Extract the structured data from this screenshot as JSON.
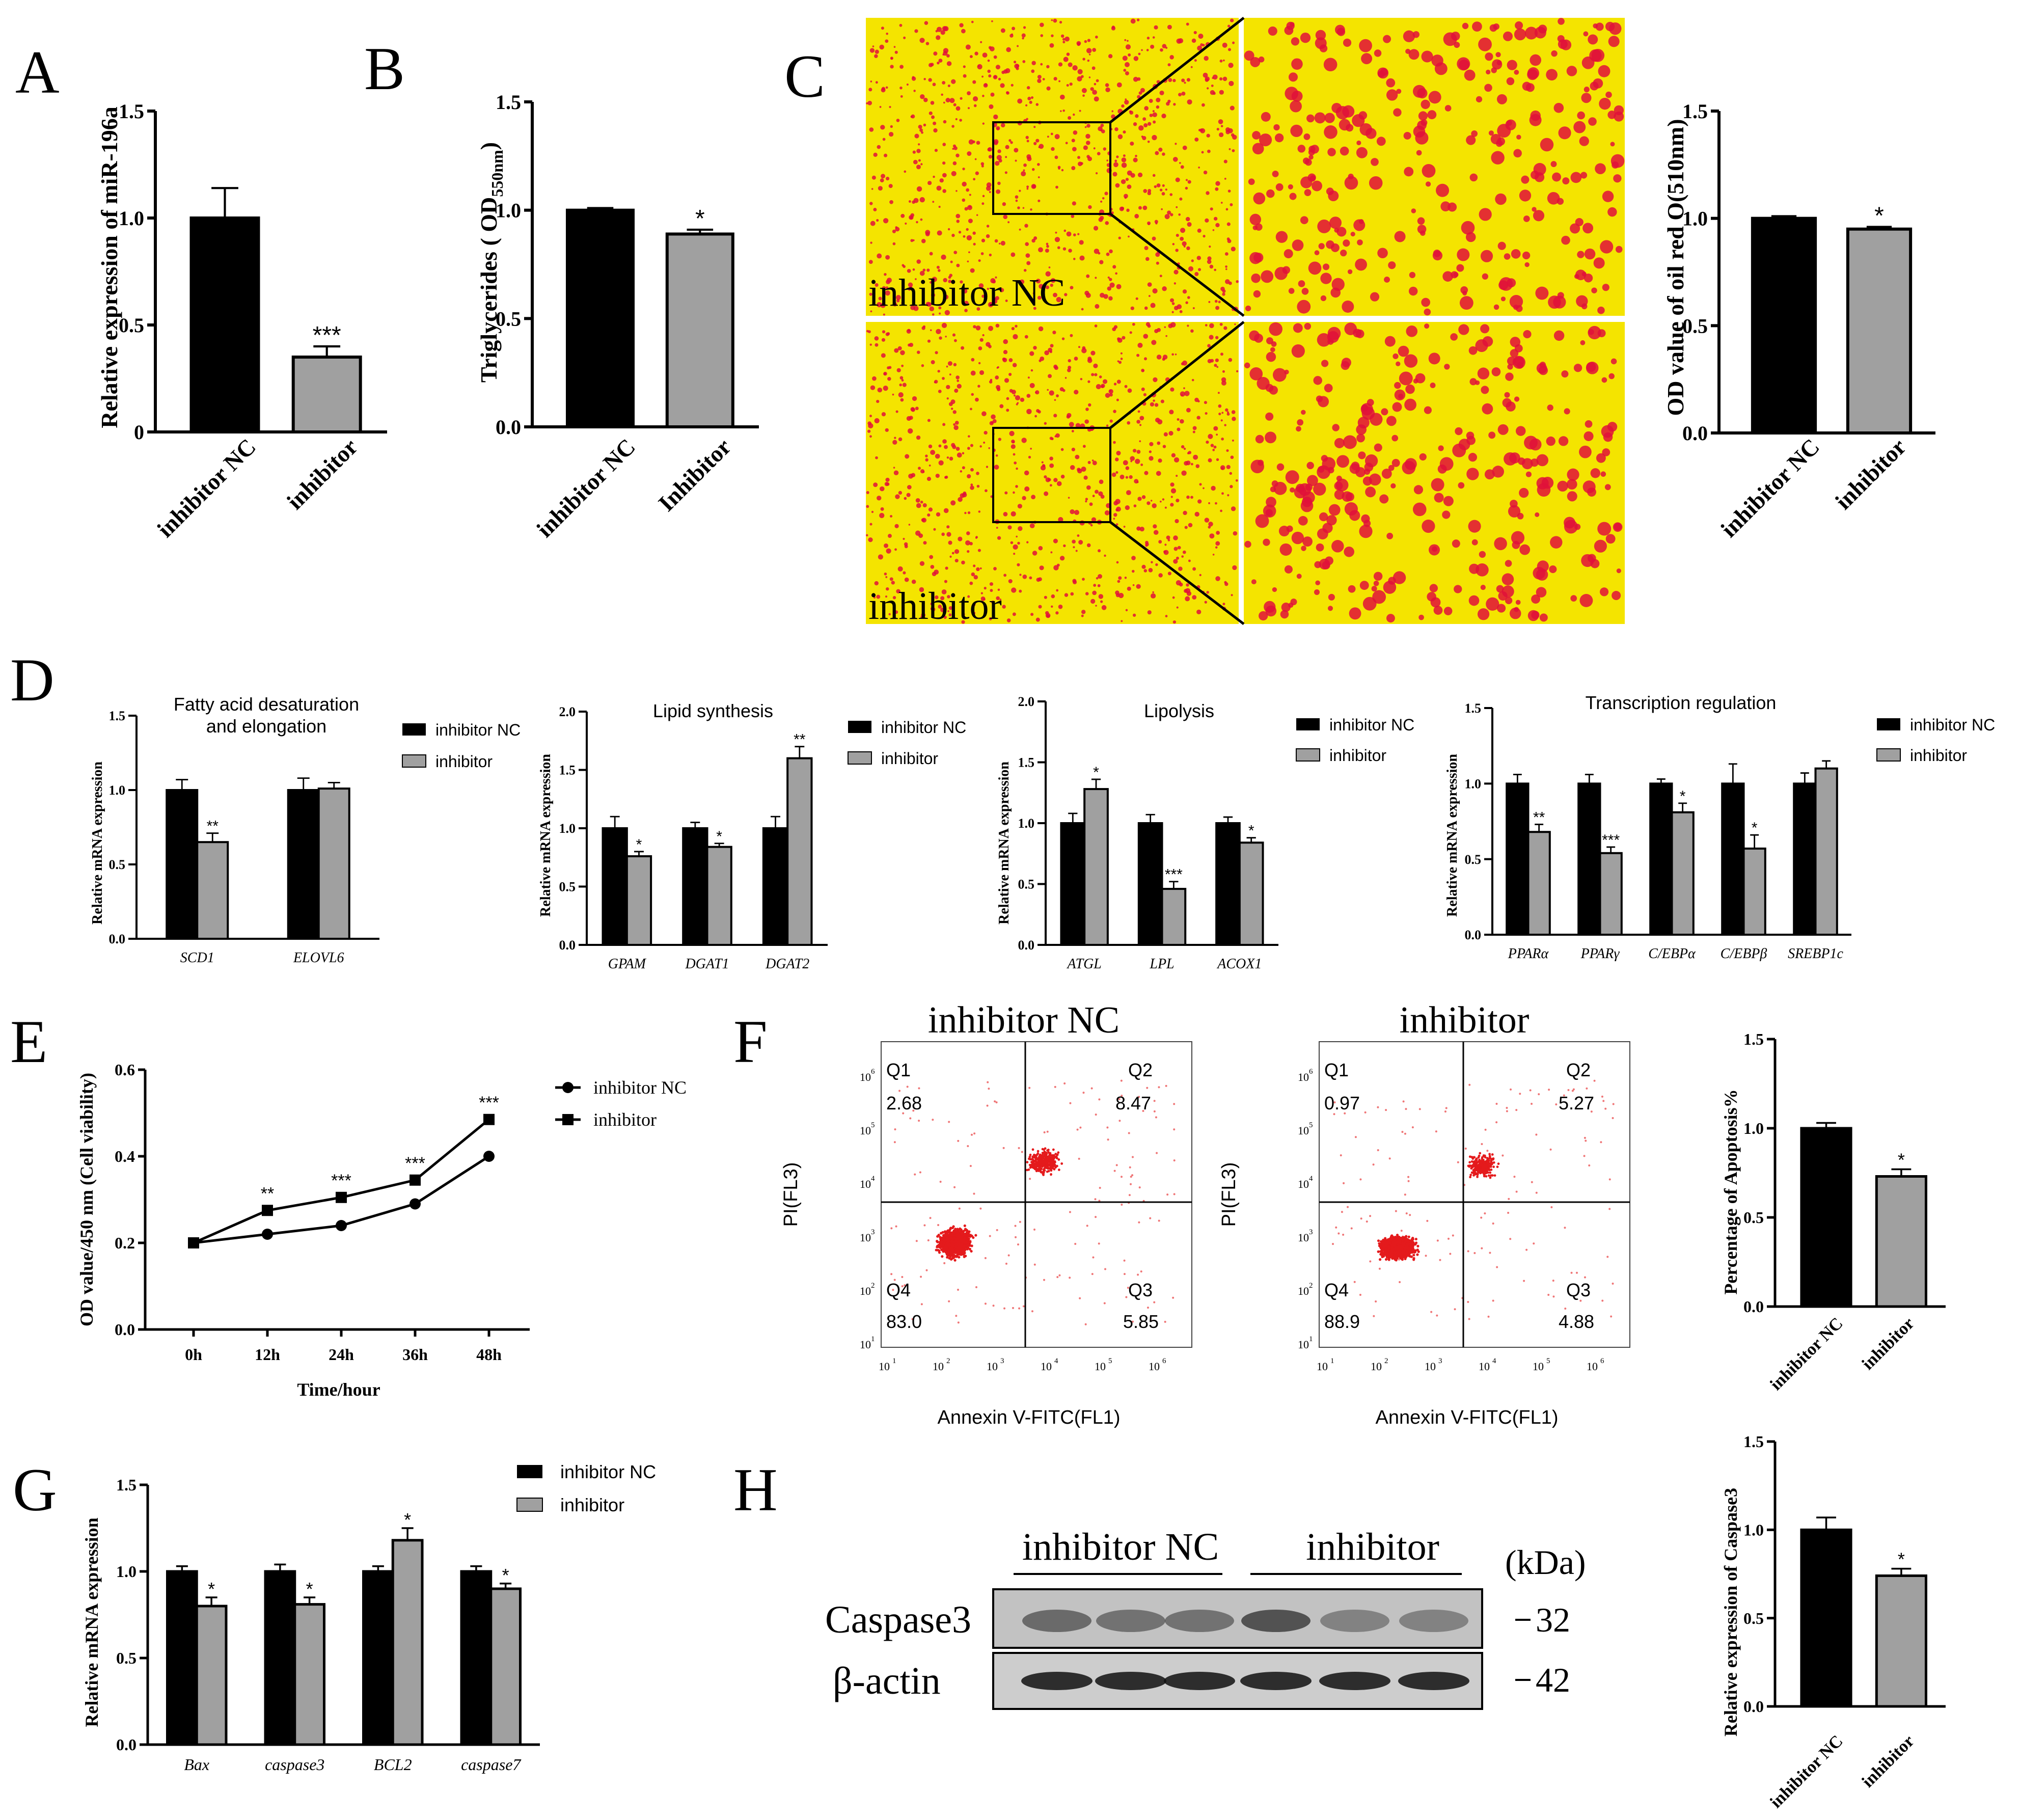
{
  "panel_letters": [
    "A",
    "B",
    "C",
    "D",
    "E",
    "F",
    "G",
    "H"
  ],
  "colors": {
    "nc": "#000000",
    "inh": "#a0a0a0",
    "stain_bg": "#f4e400",
    "droplet": "#e0103a",
    "dot": "#e41a1c"
  },
  "chart_data": [
    {
      "id": "A",
      "type": "bar",
      "ylabel": "Relative expression of miR-196a",
      "categories": [
        "inhibitor NC",
        "inhibitor"
      ],
      "values": [
        1.0,
        0.35
      ],
      "errors": [
        0.14,
        0.05
      ],
      "sig": [
        "",
        "***"
      ],
      "ylim": [
        0,
        1.5
      ],
      "ticks": [
        "0",
        "0.5",
        "1.0",
        "1.5"
      ]
    },
    {
      "id": "B",
      "type": "bar",
      "ylabel_main": "Triglycerides ( OD",
      "ylabel_sub": "550nm",
      "ylabel_end": ")",
      "categories": [
        "inhibitor NC",
        "Inhibitor"
      ],
      "values": [
        1.0,
        0.89
      ],
      "errors": [
        0.01,
        0.02
      ],
      "sig": [
        "",
        "*"
      ],
      "ylim": [
        0,
        1.5
      ],
      "ticks": [
        "0.0",
        "0.5",
        "1.0",
        "1.5"
      ]
    },
    {
      "id": "C",
      "type": "bar",
      "ylabel": "OD value of oil red O(510nm)",
      "categories": [
        "inhibitor NC",
        "inhibitor"
      ],
      "values": [
        1.0,
        0.95
      ],
      "errors": [
        0.01,
        0.01
      ],
      "sig": [
        "",
        "*"
      ],
      "ylim": [
        0,
        1.5
      ],
      "ticks": [
        "0.0",
        "0.5",
        "1.0",
        "1.5"
      ],
      "image_labels": [
        "inhibitor NC",
        "inhibitor"
      ]
    },
    {
      "id": "D1",
      "type": "bar",
      "title": "Fatty acid desaturation and elongation",
      "title_lines": [
        "Fatty acid desaturation",
        "and elongation"
      ],
      "ylabel": "Relative mRNA expression",
      "categories": [
        "SCD1",
        "ELOVL6"
      ],
      "series": [
        {
          "name": "inhibitor NC",
          "values": [
            1.0,
            1.0
          ],
          "errors": [
            0.07,
            0.08
          ]
        },
        {
          "name": "inhibitor",
          "values": [
            0.65,
            1.01
          ],
          "errors": [
            0.06,
            0.04
          ]
        }
      ],
      "sig": [
        "**",
        ""
      ],
      "ylim": [
        0,
        1.5
      ],
      "ticks": [
        "0.0",
        "0.5",
        "1.0",
        "1.5"
      ]
    },
    {
      "id": "D2",
      "type": "bar",
      "title": "Lipid synthesis",
      "ylabel": "Relative mRNA expression",
      "categories": [
        "GPAM",
        "DGAT1",
        "DGAT2"
      ],
      "series": [
        {
          "name": "inhibitor NC",
          "values": [
            1.0,
            1.0,
            1.0
          ],
          "errors": [
            0.1,
            0.05,
            0.1
          ]
        },
        {
          "name": "inhibitor",
          "values": [
            0.76,
            0.84,
            1.6
          ],
          "errors": [
            0.04,
            0.03,
            0.1
          ]
        }
      ],
      "sig": [
        "*",
        "*",
        "**"
      ],
      "ylim": [
        0,
        2.0
      ],
      "ticks": [
        "0.0",
        "0.5",
        "1.0",
        "1.5",
        "2.0"
      ]
    },
    {
      "id": "D3",
      "type": "bar",
      "title": "Lipolysis",
      "ylabel": "Relative mRNA expression",
      "categories": [
        "ATGL",
        "LPL",
        "ACOX1"
      ],
      "series": [
        {
          "name": "inhibitor NC",
          "values": [
            1.0,
            1.0,
            1.0
          ],
          "errors": [
            0.08,
            0.07,
            0.05
          ]
        },
        {
          "name": "inhibitor",
          "values": [
            1.28,
            0.46,
            0.84
          ],
          "errors": [
            0.08,
            0.06,
            0.04
          ]
        }
      ],
      "sig": [
        "*",
        "***",
        "*"
      ],
      "ylim": [
        0,
        2.0
      ],
      "ticks": [
        "0.0",
        "0.5",
        "1.0",
        "1.5",
        "2.0"
      ]
    },
    {
      "id": "D4",
      "type": "bar",
      "title": "Transcription regulation",
      "ylabel": "Relative mRNA expression",
      "categories": [
        "PPARα",
        "PPARγ",
        "C/EBPα",
        "C/EBPβ",
        "SREBP1c"
      ],
      "series": [
        {
          "name": "inhibitor NC",
          "values": [
            1.0,
            1.0,
            1.0,
            1.0,
            1.0
          ],
          "errors": [
            0.06,
            0.06,
            0.03,
            0.13,
            0.07
          ]
        },
        {
          "name": "inhibitor",
          "values": [
            0.68,
            0.54,
            0.81,
            0.57,
            1.1
          ],
          "errors": [
            0.05,
            0.04,
            0.06,
            0.09,
            0.05
          ]
        }
      ],
      "sig": [
        "**",
        "***",
        "*",
        "*",
        ""
      ],
      "ylim": [
        0,
        1.5
      ],
      "ticks": [
        "0.0",
        "0.5",
        "1.0",
        "1.5"
      ]
    },
    {
      "id": "E",
      "type": "line",
      "ylabel": "OD value/450 nm (Cell viability)",
      "xlabel": "Time/hour",
      "categories": [
        "0h",
        "12h",
        "24h",
        "36h",
        "48h"
      ],
      "series": [
        {
          "name": "inhibitor NC",
          "values": [
            0.2,
            0.22,
            0.24,
            0.29,
            0.4
          ],
          "errors": [
            0.005,
            0.005,
            0.005,
            0.005,
            0.01
          ]
        },
        {
          "name": "inhibitor",
          "values": [
            0.2,
            0.275,
            0.305,
            0.345,
            0.485
          ],
          "errors": [
            0.005,
            0.008,
            0.006,
            0.006,
            0.006
          ]
        }
      ],
      "sig": [
        "",
        "**",
        "***",
        "***",
        "***"
      ],
      "ylim": [
        0,
        0.6
      ],
      "ticks": [
        "0.0",
        "0.2",
        "0.4",
        "0.6"
      ]
    },
    {
      "id": "F",
      "type": "scatter",
      "titles": [
        "inhibitor NC",
        "inhibitor"
      ],
      "xlabel": "Annexin V-FITC(FL1)",
      "ylabel": "PI(FL3)",
      "quadrant_names": [
        "Q1",
        "Q2",
        "Q4",
        "Q3"
      ],
      "quadrants": [
        [
          "2.68",
          "8.47",
          "83.0",
          "5.85"
        ],
        [
          "0.97",
          "5.27",
          "88.9",
          "4.88"
        ]
      ],
      "axis_ticks": [
        "10",
        "10",
        "10",
        "10",
        "10",
        "10"
      ],
      "axis_exps": [
        "1",
        "2",
        "3",
        "4",
        "5",
        "6"
      ]
    },
    {
      "id": "F-bar",
      "type": "bar",
      "ylabel": "Percentage of Apoptosis%",
      "categories": [
        "inhibitor NC",
        "inhibitor"
      ],
      "values": [
        1.0,
        0.73
      ],
      "errors": [
        0.03,
        0.04
      ],
      "sig": [
        "",
        "*"
      ],
      "ylim": [
        0,
        1.5
      ],
      "ticks": [
        "0.0",
        "0.5",
        "1.0",
        "1.5"
      ]
    },
    {
      "id": "G",
      "type": "bar",
      "ylabel": "Relative mRNA expression",
      "categories": [
        "Bax",
        "caspase3",
        "BCL2",
        "caspase7"
      ],
      "series": [
        {
          "name": "inhibitor NC",
          "values": [
            1.0,
            1.0,
            1.0,
            1.0
          ],
          "errors": [
            0.03,
            0.04,
            0.03,
            0.03
          ]
        },
        {
          "name": "inhibitor",
          "values": [
            0.8,
            0.81,
            1.18,
            0.9
          ],
          "errors": [
            0.05,
            0.04,
            0.07,
            0.03
          ]
        }
      ],
      "sig": [
        "*",
        "*",
        "*",
        "*"
      ],
      "ylim": [
        0,
        1.5
      ],
      "ticks": [
        "0.0",
        "0.5",
        "1.0",
        "1.5"
      ]
    },
    {
      "id": "H",
      "type": "blot",
      "groups": [
        "inhibitor NC",
        "inhibitor"
      ],
      "unit": "(kDa)",
      "rows": [
        {
          "label": "Caspase3",
          "kda": "32"
        },
        {
          "label": "β-actin",
          "kda": "42"
        }
      ]
    },
    {
      "id": "H-bar",
      "type": "bar",
      "ylabel": "Relative expression of Caspase3",
      "categories": [
        "inhibitor NC",
        "inhibitor"
      ],
      "values": [
        1.0,
        0.74
      ],
      "errors": [
        0.07,
        0.04
      ],
      "sig": [
        "",
        "*"
      ],
      "ylim": [
        0,
        1.5
      ],
      "ticks": [
        "0.0",
        "0.5",
        "1.0",
        "1.5"
      ]
    }
  ]
}
